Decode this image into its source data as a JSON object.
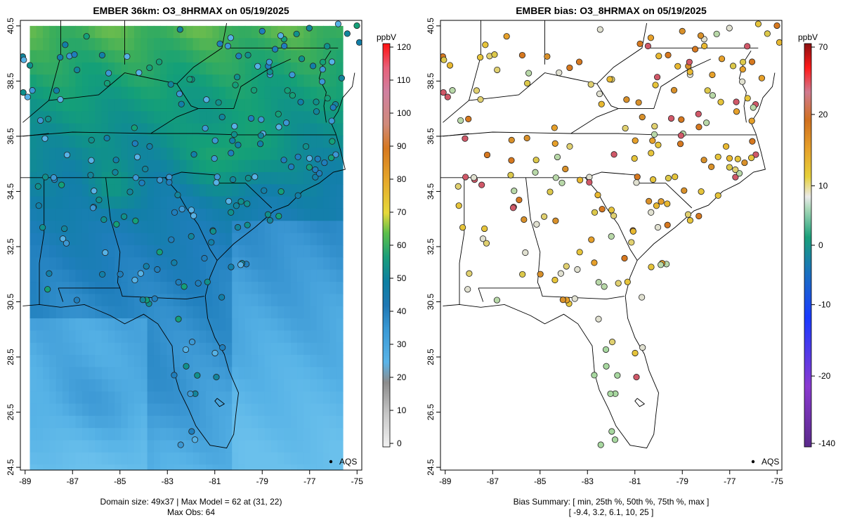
{
  "chart_data": [
    {
      "type": "heatmap",
      "title": "EMBER 36km: O3_8HRMAX on 05/19/2025",
      "xlim": [
        -89.2,
        -74.8
      ],
      "ylim": [
        24.4,
        40.7
      ],
      "x_ticks": [
        -89,
        -87,
        -85,
        -83,
        -81,
        -79,
        -77,
        -75
      ],
      "y_ticks": [
        24.5,
        26.5,
        28.5,
        30.5,
        32.5,
        34.5,
        36.5,
        38.5,
        40.5
      ],
      "legend": {
        "label": "ppbV",
        "ticks": [
          0,
          10,
          20,
          30,
          40,
          50,
          60,
          70,
          80,
          90,
          100,
          110,
          120
        ],
        "range": [
          0,
          120
        ]
      },
      "symbol_legend": {
        "label": "AQS",
        "position": "bottom-right"
      },
      "footer": [
        "Domain size: 49x37 | Max Model = 62 at (31, 22)",
        "Max Obs: 64"
      ],
      "note": "Gridded model O3 field with observed values at AQS monitors colored by the same scale"
    },
    {
      "type": "scatter",
      "title": "EMBER bias: O3_8HRMAX on 05/19/2025",
      "xlim": [
        -89.2,
        -74.8
      ],
      "ylim": [
        24.4,
        40.7
      ],
      "x_ticks": [
        -89,
        -87,
        -85,
        -83,
        -81,
        -79,
        -77,
        -75
      ],
      "y_ticks": [
        24.5,
        26.5,
        28.5,
        30.5,
        32.5,
        34.5,
        36.5,
        38.5,
        40.5
      ],
      "legend": {
        "label": "ppbV",
        "ticks": [
          70,
          20,
          10,
          0,
          -10,
          -20,
          -140
        ],
        "range": [
          -140,
          70
        ]
      },
      "symbol_legend": {
        "label": "AQS",
        "position": "bottom-right"
      },
      "footer": [
        "Bias Summary: [ min, 25th %, 50th %, 75th %, max ]",
        "[ -9.4,   3.2,   6.1,   10,   25 ]"
      ],
      "bias_summary": {
        "min": -9.4,
        "p25": 3.2,
        "p50": 6.1,
        "p75": 10,
        "max": 25
      }
    }
  ]
}
